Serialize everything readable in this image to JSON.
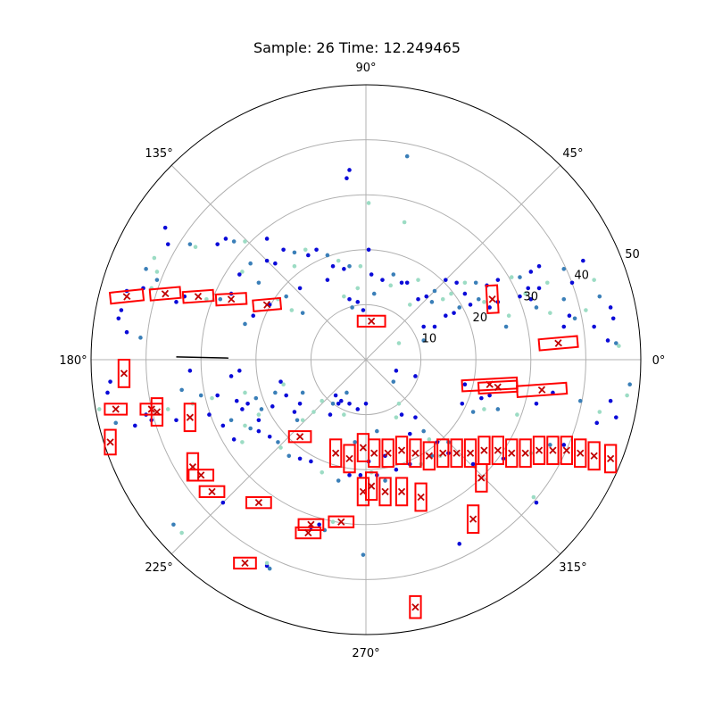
{
  "title": "Sample: 26 Time: 12.249465",
  "chart_data": {
    "type": "scatter",
    "projection": "polar",
    "title": "Sample: 26 Time: 12.249465",
    "r_lim": [
      0,
      50
    ],
    "r_ticks": [
      10,
      20,
      30,
      40,
      50
    ],
    "theta_ticks": [
      "0°",
      "45°",
      "90°",
      "135°",
      "180°",
      "225°",
      "270°",
      "315°"
    ],
    "grid": true,
    "colors": {
      "points_dark": "#0a0ad8",
      "points_mid": "#3a7fb8",
      "points_light": "#9cdcc4",
      "box": "#ff0000",
      "box_center": "#c00000",
      "heading": "#000000"
    },
    "points": [
      [
        -36.5,
        24.0
      ],
      [
        -36.0,
        21.0
      ],
      [
        -32.0,
        21.0
      ],
      [
        -31.0,
        20.5
      ],
      [
        -27.0,
        21.0
      ],
      [
        -25.5,
        22.0
      ],
      [
        -24.0,
        21.5
      ],
      [
        -22.0,
        21.5
      ],
      [
        -18.0,
        22.0
      ],
      [
        -15.0,
        20.0
      ],
      [
        -13.0,
        19.5
      ],
      [
        -11.0,
        20.0
      ],
      [
        -10.5,
        19.0
      ],
      [
        -9.0,
        20.0
      ],
      [
        -7.0,
        19.0
      ],
      [
        -5.0,
        18.0
      ],
      [
        -6.0,
        17.0
      ],
      [
        -4.0,
        16.5
      ],
      [
        -3.0,
        17.0
      ],
      [
        -1.0,
        17.0
      ],
      [
        0.5,
        20.0
      ],
      [
        -0.5,
        9.0
      ],
      [
        -2.5,
        9.5
      ],
      [
        -4.0,
        11.5
      ],
      [
        -7.0,
        14.5
      ],
      [
        -12.0,
        13.0
      ],
      [
        -14.5,
        11.5
      ],
      [
        -16.0,
        11.0
      ],
      [
        -17.5,
        10.0
      ],
      [
        -20.5,
        8.0
      ],
      [
        -22.0,
        6.5
      ],
      [
        -13.0,
        17.0
      ],
      [
        -16.5,
        17.5
      ],
      [
        -18.0,
        18.0
      ],
      [
        -21.0,
        17.5
      ],
      [
        -22.5,
        16.0
      ],
      [
        -23.0,
        15.5
      ],
      [
        -24.5,
        12.0
      ],
      [
        -26.5,
        11.0
      ],
      [
        -29.0,
        11.0
      ],
      [
        -33.0,
        11.5
      ],
      [
        -34.5,
        10.5
      ],
      [
        -38.0,
        14.5
      ],
      [
        -39.0,
        13.0
      ],
      [
        -40.5,
        13.0
      ],
      [
        -43.5,
        12.5
      ],
      [
        -40.0,
        16.5
      ],
      [
        -38.5,
        18.5
      ],
      [
        -45.0,
        7.5
      ],
      [
        -43.5,
        5.0
      ],
      [
        -41.0,
        4.0
      ],
      [
        0.5,
        28.5
      ],
      [
        -3.0,
        34.5
      ],
      [
        -3.5,
        33.0
      ],
      [
        7.5,
        37.0
      ],
      [
        7.0,
        25.0
      ],
      [
        10.5,
        6.0
      ],
      [
        12.5,
        6.0
      ],
      [
        10.5,
        3.5
      ],
      [
        6.0,
        3.0
      ],
      [
        5.5,
        -2.0
      ],
      [
        9.0,
        -3.0
      ],
      [
        5.0,
        -4.0
      ],
      [
        6.0,
        -8.0
      ],
      [
        6.5,
        -10.0
      ],
      [
        9.0,
        -10.5
      ],
      [
        10.5,
        -13.0
      ],
      [
        11.5,
        -14.5
      ],
      [
        13.0,
        -15.0
      ],
      [
        15.0,
        -17.0
      ],
      [
        12.0,
        -17.5
      ],
      [
        10.0,
        -19.0
      ],
      [
        8.0,
        -19.0
      ],
      [
        5.5,
        -20.0
      ],
      [
        3.5,
        -22.0
      ],
      [
        1.0,
        -20.5
      ],
      [
        -1.0,
        -21.0
      ],
      [
        -3.0,
        -21.0
      ],
      [
        -5.0,
        -22.0
      ],
      [
        -8.0,
        -20.5
      ],
      [
        -10.0,
        -18.5
      ],
      [
        -12.0,
        -18.0
      ],
      [
        -14.0,
        -17.5
      ],
      [
        -15.5,
        -16.0
      ],
      [
        -17.5,
        -14.0
      ],
      [
        -19.5,
        -11.0
      ],
      [
        -20.0,
        -7.0
      ],
      [
        -22.0,
        -6.0
      ],
      [
        -24.5,
        -3.0
      ],
      [
        -23.0,
        -2.0
      ],
      [
        -16.5,
        -6.0
      ],
      [
        -15.0,
        -4.5
      ],
      [
        -14.5,
        -6.5
      ],
      [
        -15.5,
        -4.0
      ],
      [
        -11.5,
        -6.0
      ],
      [
        -9.5,
        -9.5
      ],
      [
        -6.5,
        -10.0
      ],
      [
        -5.5,
        -6.5
      ],
      [
        -3.5,
        -6.0
      ],
      [
        -4.0,
        -10.0
      ],
      [
        -3.0,
        -8.0
      ],
      [
        -32.0,
        -2.0
      ],
      [
        -33.5,
        -5.5
      ],
      [
        -31.5,
        -8.0
      ],
      [
        -28.5,
        -10.0
      ],
      [
        -26.0,
        -12.0
      ],
      [
        -24.5,
        -11.0
      ],
      [
        -22.0,
        -12.0
      ],
      [
        -19.5,
        -13.0
      ],
      [
        -17.0,
        -8.5
      ],
      [
        -19.0,
        -9.0
      ],
      [
        -19.5,
        -10.0
      ],
      [
        -21.5,
        -8.0
      ],
      [
        -22.5,
        -9.0
      ],
      [
        -21.0,
        -12.5
      ],
      [
        -22.5,
        -15.0
      ],
      [
        -24.0,
        -14.5
      ],
      [
        -34.5,
        -11.0
      ],
      [
        -30.0,
        -6.5
      ],
      [
        -36.0,
        -9.0
      ],
      [
        -40.0,
        -10.0
      ],
      [
        -42.0,
        -12.0
      ],
      [
        -45.5,
        -11.5
      ],
      [
        -48.5,
        -9.0
      ],
      [
        -47.0,
        -6.0
      ],
      [
        -46.5,
        -4.0
      ],
      [
        -35.0,
        -30.0
      ],
      [
        -33.5,
        -31.5
      ],
      [
        -26.0,
        -26.0
      ],
      [
        -18.0,
        -37.5
      ],
      [
        -17.5,
        -38.0
      ],
      [
        -18.0,
        -37.0
      ],
      [
        -10.0,
        -30.5
      ],
      [
        -8.5,
        -30.0
      ],
      [
        -7.5,
        -31.0
      ],
      [
        -6.0,
        -29.5
      ],
      [
        -1.5,
        -9.0
      ],
      [
        0.0,
        -8.0
      ],
      [
        2.0,
        -13.0
      ],
      [
        5.5,
        -10.5
      ],
      [
        -5.0,
        -8.0
      ],
      [
        -4.5,
        -7.5
      ],
      [
        -6.0,
        -8.0
      ],
      [
        -8.0,
        -7.5
      ],
      [
        -12.0,
        -8.0
      ],
      [
        -13.0,
        -9.5
      ],
      [
        -12.5,
        -11.0
      ],
      [
        8.0,
        10.0
      ],
      [
        9.5,
        11.0
      ],
      [
        11.0,
        11.5
      ],
      [
        12.5,
        12.5
      ],
      [
        14.0,
        11.0
      ],
      [
        14.5,
        8.0
      ],
      [
        16.0,
        8.5
      ],
      [
        17.0,
        9.5
      ],
      [
        15.5,
        12.0
      ],
      [
        18.0,
        12.0
      ],
      [
        19.0,
        10.0
      ],
      [
        20.5,
        11.0
      ],
      [
        21.5,
        10.5
      ],
      [
        22.5,
        9.5
      ],
      [
        24.0,
        10.5
      ],
      [
        25.5,
        6.0
      ],
      [
        26.0,
        8.0
      ],
      [
        28.0,
        11.5
      ],
      [
        30.0,
        11.0
      ],
      [
        31.0,
        9.5
      ],
      [
        33.5,
        8.5
      ],
      [
        36.0,
        6.0
      ],
      [
        37.0,
        8.0
      ],
      [
        38.0,
        7.5
      ],
      [
        40.0,
        9.0
      ],
      [
        41.5,
        6.0
      ],
      [
        44.0,
        3.5
      ],
      [
        45.5,
        3.0
      ],
      [
        46.0,
        2.5
      ],
      [
        45.0,
        7.5
      ],
      [
        44.5,
        9.5
      ],
      [
        42.5,
        11.5
      ],
      [
        41.5,
        14.5
      ],
      [
        39.5,
        18.0
      ],
      [
        37.5,
        14.0
      ],
      [
        36.0,
        16.5
      ],
      [
        33.0,
        14.0
      ],
      [
        31.5,
        13.0
      ],
      [
        29.5,
        13.0
      ],
      [
        28.0,
        15.0
      ],
      [
        26.5,
        15.0
      ],
      [
        24.0,
        14.5
      ],
      [
        22.0,
        13.5
      ],
      [
        20.0,
        14.0
      ],
      [
        18.0,
        14.0
      ],
      [
        16.5,
        14.0
      ],
      [
        14.5,
        14.5
      ],
      [
        12.0,
        10.5
      ],
      [
        9.5,
        14.5
      ],
      [
        7.5,
        14.0
      ],
      [
        6.5,
        14.0
      ],
      [
        5.0,
        15.5
      ],
      [
        4.5,
        13.5
      ],
      [
        3.0,
        14.5
      ],
      [
        1.0,
        15.5
      ],
      [
        1.5,
        12.0
      ],
      [
        -1.5,
        13.0
      ],
      [
        -1.5,
        10.5
      ],
      [
        -3.0,
        11.0
      ],
      [
        -11.5,
        8.5
      ],
      [
        -13.5,
        9.0
      ],
      [
        17.5,
        -8.0
      ],
      [
        21.0,
        -7.0
      ],
      [
        19.5,
        -9.5
      ],
      [
        21.5,
        -9.0
      ],
      [
        18.0,
        -4.5
      ],
      [
        22.5,
        -6.5
      ],
      [
        24.0,
        -9.0
      ],
      [
        27.5,
        -10.0
      ],
      [
        31.0,
        -8.0
      ],
      [
        34.0,
        -6.0
      ],
      [
        39.0,
        -7.5
      ],
      [
        42.5,
        -9.5
      ],
      [
        42.0,
        -11.5
      ],
      [
        44.5,
        -7.5
      ],
      [
        48.0,
        -4.5
      ],
      [
        47.5,
        -6.5
      ],
      [
        45.5,
        -10.5
      ],
      [
        36.0,
        -15.5
      ],
      [
        33.5,
        -15.5
      ],
      [
        30.0,
        -17.0
      ],
      [
        25.0,
        -18.0
      ],
      [
        19.5,
        -19.0
      ],
      [
        15.0,
        -15.0
      ],
      [
        13.5,
        -17.5
      ],
      [
        0.5,
        -18.5
      ],
      [
        2.0,
        -21.0
      ],
      [
        -2.0,
        -15.0
      ],
      [
        30.5,
        -25.0
      ],
      [
        31.0,
        -26.0
      ],
      [
        17.0,
        -33.5
      ],
      [
        -0.5,
        -35.5
      ],
      [
        -28.0,
        -7.0
      ],
      [
        -27.0,
        -6.5
      ],
      [
        -23.5,
        -7.5
      ],
      [
        -16.0,
        -15.0
      ],
      [
        -11.5,
        -11.0
      ],
      [
        8.0,
        -13.5
      ],
      [
        3.5,
        -17.5
      ],
      [
        36.0,
        11.0
      ],
      [
        29.0,
        12.0
      ],
      [
        30.0,
        16.0
      ],
      [
        31.5,
        17.0
      ],
      [
        -19.5,
        14.0
      ],
      [
        -38.0,
        16.0
      ],
      [
        -39.0,
        -11.0
      ],
      [
        -44.5,
        9.0
      ]
    ],
    "boxes": [
      [
        -43.5,
        11.5,
        6.0,
        2.0,
        -6
      ],
      [
        -36.5,
        12.0,
        5.5,
        2.0,
        -5
      ],
      [
        -30.5,
        11.5,
        5.5,
        2.0,
        -4
      ],
      [
        -24.5,
        11.0,
        5.5,
        2.0,
        -3
      ],
      [
        -18.0,
        10.0,
        5.0,
        2.0,
        -5
      ],
      [
        1.0,
        7.0,
        5.0,
        2.0,
        0
      ],
      [
        -45.5,
        -9.0,
        4.0,
        2.0,
        0
      ],
      [
        -39.0,
        -9.0,
        4.0,
        2.0,
        0
      ],
      [
        -44.0,
        -2.5,
        2.0,
        5.0,
        0
      ],
      [
        -38.0,
        -9.5,
        2.0,
        5.0,
        0
      ],
      [
        -32.0,
        -10.5,
        2.0,
        5.0,
        0
      ],
      [
        -31.5,
        -19.5,
        2.0,
        5.0,
        0
      ],
      [
        -46.5,
        -15.0,
        2.0,
        4.5,
        0
      ],
      [
        -30.0,
        -21.0,
        4.5,
        2.0,
        0
      ],
      [
        -28.0,
        -24.0,
        4.5,
        2.0,
        0
      ],
      [
        -22.0,
        -37.0,
        4.0,
        2.0,
        0
      ],
      [
        -19.5,
        -26.0,
        4.5,
        2.0,
        0
      ],
      [
        -12.0,
        -14.0,
        4.0,
        2.0,
        0
      ],
      [
        -10.0,
        -30.0,
        4.5,
        2.0,
        0
      ],
      [
        -10.5,
        -31.5,
        4.5,
        2.0,
        0
      ],
      [
        -4.5,
        -29.5,
        4.5,
        2.0,
        0
      ],
      [
        -5.5,
        -17.0,
        2.0,
        5.0,
        0
      ],
      [
        -3.0,
        -18.0,
        2.0,
        5.0,
        0
      ],
      [
        -0.5,
        -16.0,
        2.0,
        5.0,
        0
      ],
      [
        1.5,
        -17.0,
        2.0,
        5.0,
        0
      ],
      [
        4.0,
        -17.0,
        2.0,
        5.0,
        0
      ],
      [
        6.5,
        -16.5,
        2.0,
        5.0,
        0
      ],
      [
        9.0,
        -17.0,
        2.0,
        5.0,
        0
      ],
      [
        11.5,
        -17.5,
        2.0,
        5.0,
        0
      ],
      [
        14.0,
        -17.0,
        2.0,
        5.0,
        0
      ],
      [
        16.5,
        -17.0,
        2.0,
        5.0,
        0
      ],
      [
        19.0,
        -17.0,
        2.0,
        5.0,
        0
      ],
      [
        21.5,
        -16.5,
        2.0,
        5.0,
        0
      ],
      [
        24.0,
        -16.5,
        2.0,
        5.0,
        0
      ],
      [
        26.5,
        -17.0,
        2.0,
        5.0,
        0
      ],
      [
        29.0,
        -17.0,
        2.0,
        5.0,
        0
      ],
      [
        31.5,
        -16.5,
        2.0,
        5.0,
        0
      ],
      [
        34.0,
        -16.5,
        2.0,
        5.0,
        0
      ],
      [
        36.5,
        -16.5,
        2.0,
        5.0,
        0
      ],
      [
        39.0,
        -17.0,
        2.0,
        5.0,
        0
      ],
      [
        41.5,
        -17.5,
        2.0,
        5.0,
        0
      ],
      [
        44.5,
        -18.0,
        2.0,
        5.0,
        0
      ],
      [
        -0.5,
        -24.0,
        2.0,
        5.0,
        0
      ],
      [
        1.0,
        -23.0,
        2.0,
        5.0,
        0
      ],
      [
        3.5,
        -24.0,
        2.0,
        5.0,
        0
      ],
      [
        6.5,
        -24.0,
        2.0,
        5.0,
        0
      ],
      [
        10.0,
        -25.0,
        2.0,
        5.0,
        0
      ],
      [
        19.5,
        -29.0,
        2.0,
        5.0,
        0
      ],
      [
        22.5,
        -4.5,
        10.0,
        2.0,
        -3
      ],
      [
        24.0,
        -5.0,
        7.0,
        2.0,
        -3
      ],
      [
        32.0,
        -5.5,
        9.0,
        2.0,
        -4
      ],
      [
        23.0,
        11.0,
        2.0,
        5.0,
        -3
      ],
      [
        35.0,
        3.0,
        7.0,
        2.0,
        -5
      ],
      [
        21.0,
        -21.5,
        2.0,
        5.0,
        0
      ],
      [
        9.0,
        -45.0,
        2.0,
        4.0,
        0
      ]
    ]
  }
}
